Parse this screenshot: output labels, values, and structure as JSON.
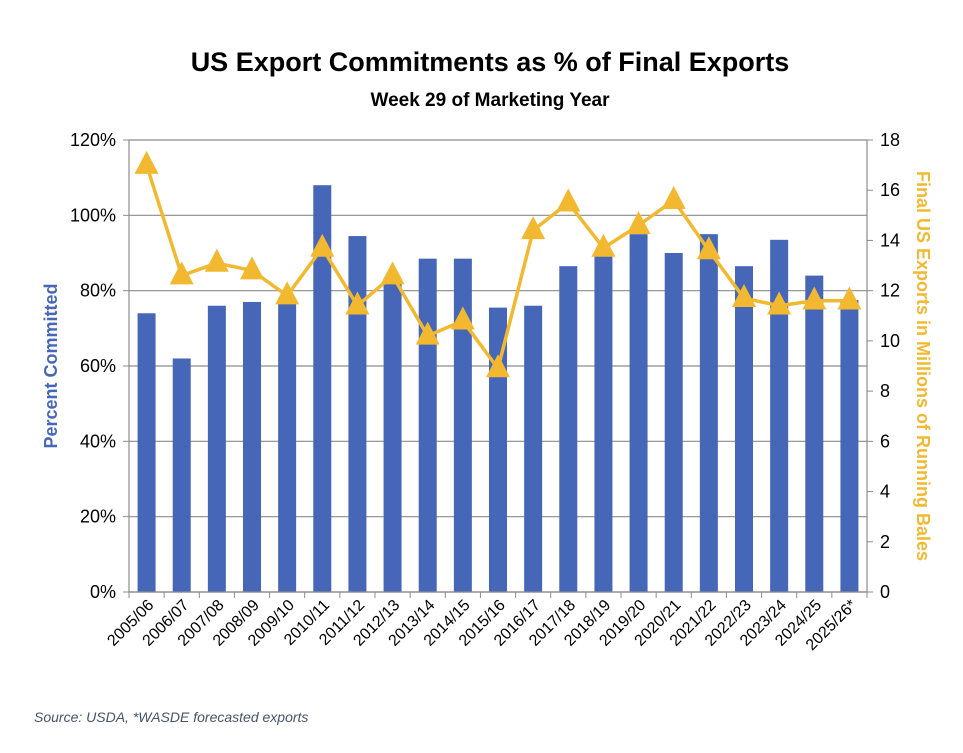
{
  "chart_data": {
    "type": "bar",
    "title": "US Export Commitments as % of Final Exports",
    "subtitle": "Week 29 of Marketing Year",
    "categories": [
      "2005/06",
      "2006/07",
      "2007/08",
      "2008/09",
      "2009/10",
      "2010/11",
      "2011/12",
      "2012/13",
      "2013/14",
      "2014/15",
      "2015/16",
      "2016/17",
      "2017/18",
      "2018/19",
      "2019/20",
      "2020/21",
      "2021/22",
      "2022/23",
      "2023/24",
      "2024/25",
      "2025/26*"
    ],
    "series": [
      {
        "name": "Percent Committed",
        "type": "bar",
        "axis": "left",
        "color": "#4666b8",
        "values": [
          74,
          62,
          76,
          77,
          78,
          108,
          94.5,
          82,
          88.5,
          88.5,
          75.5,
          76,
          86.5,
          89.5,
          95,
          90,
          95,
          86.5,
          93.5,
          84,
          77.5
        ]
      },
      {
        "name": "Final US Exports in Millions of Running Bales",
        "type": "line",
        "marker": "triangle",
        "axis": "right",
        "color": "#f2b930",
        "values": [
          17.0,
          12.6,
          13.1,
          12.8,
          11.8,
          13.7,
          11.4,
          12.6,
          10.2,
          10.8,
          8.9,
          14.4,
          15.5,
          13.7,
          14.6,
          15.6,
          13.6,
          11.7,
          11.4,
          11.6,
          11.6
        ]
      }
    ],
    "ylabel": "Percent Committed",
    "ylabel_right": "Final US Exports in Millions of Running Bales",
    "xlabel": "",
    "ylim": [
      0,
      120
    ],
    "ylim_right": [
      0,
      18
    ],
    "yticks": [
      "0%",
      "20%",
      "40%",
      "60%",
      "80%",
      "100%",
      "120%"
    ],
    "yticks_right": [
      "0",
      "2",
      "4",
      "6",
      "8",
      "10",
      "12",
      "14",
      "16",
      "18"
    ],
    "grid": true,
    "legend": "none",
    "source": "Source: USDA, *WASDE forecasted exports"
  }
}
